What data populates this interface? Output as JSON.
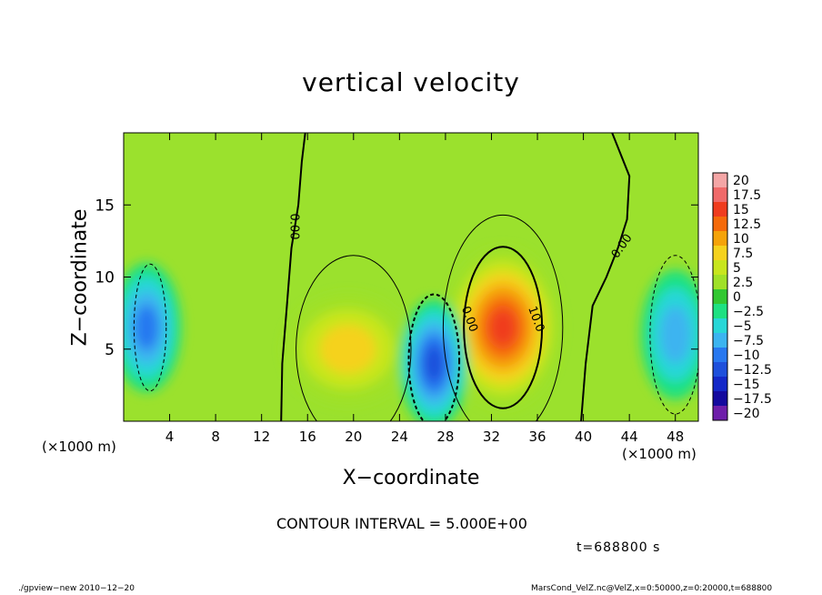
{
  "chart_data": {
    "type": "heatmap",
    "title": "vertical velocity",
    "xlabel": "X−coordinate",
    "ylabel": "Z−coordinate",
    "x_unit_left": "(×1000 m)",
    "x_unit_right": "(×1000 m)",
    "xlim": [
      0,
      50
    ],
    "ylim": [
      0,
      20
    ],
    "x_ticks": [
      4,
      8,
      12,
      16,
      20,
      24,
      28,
      32,
      36,
      40,
      44,
      48
    ],
    "y_ticks": [
      5,
      10,
      15
    ],
    "colorbar": {
      "levels": [
        20,
        17.5,
        15,
        12.5,
        10,
        7.5,
        5,
        2.5,
        0,
        -2.5,
        -5,
        -7.5,
        -10,
        -12.5,
        -15,
        -17.5,
        -20
      ],
      "level_labels": [
        "20",
        "17.5",
        "15",
        "12.5",
        "10",
        "7.5",
        "5",
        "2.5",
        "0",
        "−2.5",
        "−5",
        "−7.5",
        "−10",
        "−12.5",
        "−15",
        "−17.5",
        "−20"
      ],
      "colors": [
        "#f4a6a6",
        "#f06a6a",
        "#f03c1e",
        "#f56a0a",
        "#f5a30a",
        "#f5d21e",
        "#c8e61e",
        "#a0e128",
        "#32c832",
        "#1ee182",
        "#28d7d7",
        "#3cb4f0",
        "#2878f0",
        "#1e50dc",
        "#1428c8",
        "#140a9e",
        "#6e1eaa"
      ]
    },
    "features": [
      {
        "kind": "updraft",
        "x": 33,
        "z": 6.5,
        "peak": 17
      },
      {
        "kind": "updraft",
        "x": 19.5,
        "z": 5,
        "peak": 8
      },
      {
        "kind": "downdraft",
        "x": 27,
        "z": 4,
        "peak": -14
      },
      {
        "kind": "downdraft",
        "x": 2,
        "z": 6.5,
        "peak": -10
      },
      {
        "kind": "downdraft",
        "x": 48,
        "z": 6,
        "peak": -8
      }
    ],
    "contour_labels": [
      "0.00",
      "0.00",
      "0.00",
      "10.0"
    ],
    "contour_interval": "CONTOUR INTERVAL = 5.000E+00"
  },
  "annotations": {
    "time": "t=688800 s",
    "footer_left": "./gpview−new   2010−12−20",
    "footer_right": "MarsCond_VelZ.nc@VelZ,x=0:50000,z=0:20000,t=688800"
  }
}
